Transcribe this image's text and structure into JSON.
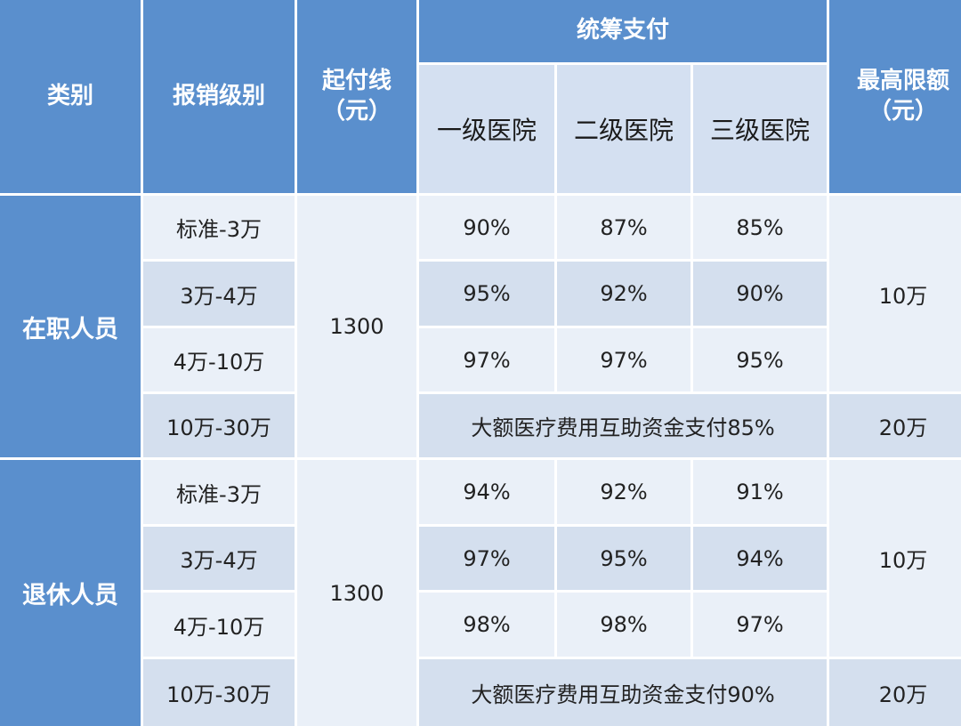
{
  "header": {
    "category": "类别",
    "level": "报销级别",
    "deductible": "起付线\n（元）",
    "pooled": "统筹支付",
    "max_limit": "最高限额\n（元）",
    "hospitals": [
      "一级医院",
      "二级医院",
      "三级医院"
    ]
  },
  "groups": [
    {
      "name": "在职人员",
      "deductible": "1300",
      "rows": [
        {
          "level": "标准-3万",
          "h1": "90%",
          "h2": "87%",
          "h3": "85%"
        },
        {
          "level": "3万-4万",
          "h1": "95%",
          "h2": "92%",
          "h3": "90%"
        },
        {
          "level": "4万-10万",
          "h1": "97%",
          "h2": "97%",
          "h3": "95%"
        }
      ],
      "limit": "10万",
      "large": {
        "level": "10万-30万",
        "text": "大额医疗费用互助资金支付85%",
        "limit": "20万"
      }
    },
    {
      "name": "退休人员",
      "deductible": "1300",
      "rows": [
        {
          "level": "标准-3万",
          "h1": "94%",
          "h2": "92%",
          "h3": "91%"
        },
        {
          "level": "3万-4万",
          "h1": "97%",
          "h2": "95%",
          "h3": "94%"
        },
        {
          "level": "4万-10万",
          "h1": "98%",
          "h2": "98%",
          "h3": "97%"
        }
      ],
      "limit": "10万",
      "large": {
        "level": "10万-30万",
        "text": "大额医疗费用互助资金支付90%",
        "limit": "20万"
      }
    }
  ]
}
